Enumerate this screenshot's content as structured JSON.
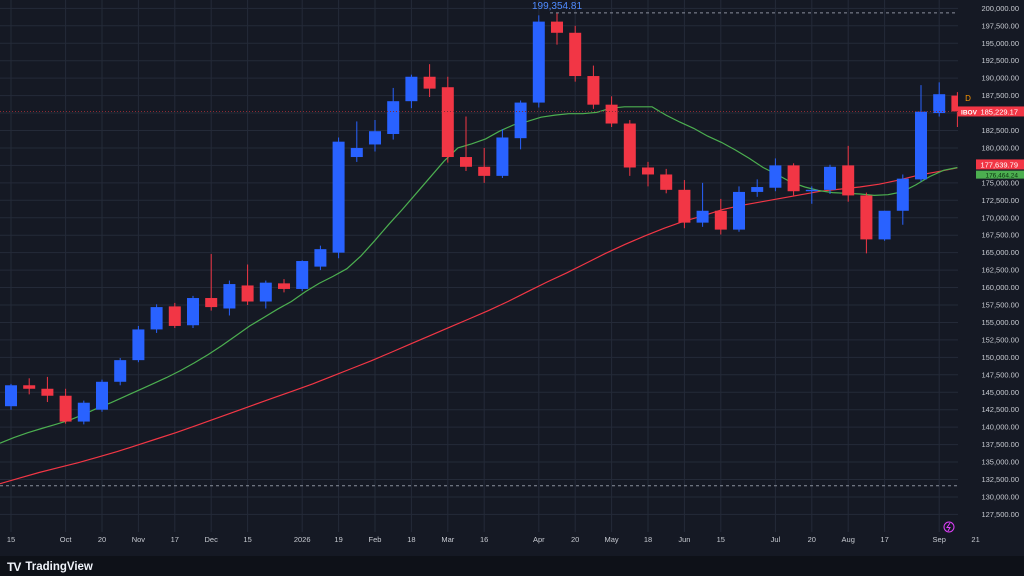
{
  "branding": {
    "logo_mark": "TV",
    "name": "TradingView"
  },
  "colors": {
    "up": "#2962ff",
    "down": "#f23645",
    "ma_fast": "#4caf50",
    "ma_slow": "#f23645",
    "grid": "#242a38",
    "background": "#151924",
    "price_badge": "#f23645",
    "high_label": "#4f8bff"
  },
  "chart_data": {
    "type": "candlestick",
    "interval": "weekly",
    "ylim": [
      126000,
      200500
    ],
    "y_ticks": [
      "127,500.00",
      "130,000.00",
      "132,500.00",
      "135,000.00",
      "137,500.00",
      "140,000.00",
      "142,500.00",
      "145,000.00",
      "147,500.00",
      "150,000.00",
      "152,500.00",
      "155,000.00",
      "157,500.00",
      "160,000.00",
      "162,500.00",
      "165,000.00",
      "167,500.00",
      "170,000.00",
      "172,500.00",
      "175,000.00",
      "177,500.00",
      "180,000.00",
      "182,500.00",
      "185,000.00",
      "187,500.00",
      "190,000.00",
      "192,500.00",
      "195,000.00",
      "197,500.00",
      "200,000.00"
    ],
    "x_ticks": [
      {
        "label": "15",
        "week": 0
      },
      {
        "label": "Oct",
        "week": 3
      },
      {
        "label": "20",
        "week": 5
      },
      {
        "label": "Nov",
        "week": 7
      },
      {
        "label": "17",
        "week": 9
      },
      {
        "label": "Dec",
        "week": 11
      },
      {
        "label": "15",
        "week": 13
      },
      {
        "label": "2026",
        "week": 16
      },
      {
        "label": "19",
        "week": 18
      },
      {
        "label": "Feb",
        "week": 20
      },
      {
        "label": "18",
        "week": 22
      },
      {
        "label": "Mar",
        "week": 24
      },
      {
        "label": "16",
        "week": 26
      },
      {
        "label": "Apr",
        "week": 29
      },
      {
        "label": "20",
        "week": 31
      },
      {
        "label": "May",
        "week": 33
      },
      {
        "label": "18",
        "week": 35
      },
      {
        "label": "Jun",
        "week": 37
      },
      {
        "label": "15",
        "week": 39
      },
      {
        "label": "Jul",
        "week": 42
      },
      {
        "label": "20",
        "week": 44
      },
      {
        "label": "Aug",
        "week": 46
      },
      {
        "label": "17",
        "week": 48
      },
      {
        "label": "Sep",
        "week": 51
      },
      {
        "label": "21",
        "week": 53
      }
    ],
    "candles": [
      {
        "o": 143000,
        "h": 146200,
        "l": 142500,
        "c": 146000
      },
      {
        "o": 146000,
        "h": 147000,
        "l": 144700,
        "c": 145500
      },
      {
        "o": 145500,
        "h": 147200,
        "l": 143600,
        "c": 144500
      },
      {
        "o": 144500,
        "h": 145500,
        "l": 140500,
        "c": 140800
      },
      {
        "o": 140800,
        "h": 143800,
        "l": 140400,
        "c": 143500
      },
      {
        "o": 142500,
        "h": 146800,
        "l": 142200,
        "c": 146500
      },
      {
        "o": 146500,
        "h": 149900,
        "l": 146000,
        "c": 149600
      },
      {
        "o": 149600,
        "h": 154500,
        "l": 149300,
        "c": 154000
      },
      {
        "o": 154000,
        "h": 157600,
        "l": 153500,
        "c": 157200
      },
      {
        "o": 157300,
        "h": 157800,
        "l": 154200,
        "c": 154500
      },
      {
        "o": 154600,
        "h": 158800,
        "l": 154200,
        "c": 158500
      },
      {
        "o": 158500,
        "h": 164800,
        "l": 156700,
        "c": 157200
      },
      {
        "o": 157000,
        "h": 161000,
        "l": 156000,
        "c": 160500
      },
      {
        "o": 160300,
        "h": 163300,
        "l": 157500,
        "c": 158000
      },
      {
        "o": 158000,
        "h": 161000,
        "l": 157000,
        "c": 160700
      },
      {
        "o": 160600,
        "h": 161200,
        "l": 159300,
        "c": 159800
      },
      {
        "o": 159800,
        "h": 163900,
        "l": 159500,
        "c": 163800
      },
      {
        "o": 163000,
        "h": 166000,
        "l": 162500,
        "c": 165500
      },
      {
        "o": 165000,
        "h": 181500,
        "l": 164200,
        "c": 180900
      },
      {
        "o": 178700,
        "h": 183800,
        "l": 178000,
        "c": 180000
      },
      {
        "o": 180500,
        "h": 184000,
        "l": 179500,
        "c": 182400
      },
      {
        "o": 182000,
        "h": 188600,
        "l": 181200,
        "c": 186700
      },
      {
        "o": 186700,
        "h": 190500,
        "l": 185700,
        "c": 190200
      },
      {
        "o": 190200,
        "h": 192000,
        "l": 187300,
        "c": 188500
      },
      {
        "o": 188700,
        "h": 190200,
        "l": 177900,
        "c": 178700
      },
      {
        "o": 178700,
        "h": 184500,
        "l": 176700,
        "c": 177300
      },
      {
        "o": 177300,
        "h": 180000,
        "l": 175000,
        "c": 176000
      },
      {
        "o": 176000,
        "h": 182700,
        "l": 175700,
        "c": 181500
      },
      {
        "o": 181400,
        "h": 186800,
        "l": 179800,
        "c": 186500
      },
      {
        "o": 186500,
        "h": 199000,
        "l": 185800,
        "c": 198100
      },
      {
        "o": 198100,
        "h": 199354.81,
        "l": 194800,
        "c": 196500
      },
      {
        "o": 196500,
        "h": 197500,
        "l": 189500,
        "c": 190300
      },
      {
        "o": 190300,
        "h": 191800,
        "l": 185600,
        "c": 186200
      },
      {
        "o": 186200,
        "h": 187400,
        "l": 183000,
        "c": 183500
      },
      {
        "o": 183500,
        "h": 184000,
        "l": 176000,
        "c": 177200
      },
      {
        "o": 177200,
        "h": 178000,
        "l": 174500,
        "c": 176200
      },
      {
        "o": 176200,
        "h": 177000,
        "l": 173500,
        "c": 174000
      },
      {
        "o": 174000,
        "h": 175400,
        "l": 168500,
        "c": 169300
      },
      {
        "o": 169300,
        "h": 175000,
        "l": 168700,
        "c": 171000
      },
      {
        "o": 171000,
        "h": 172700,
        "l": 167600,
        "c": 168300
      },
      {
        "o": 168300,
        "h": 174500,
        "l": 168000,
        "c": 173700
      },
      {
        "o": 173700,
        "h": 175500,
        "l": 173000,
        "c": 174400
      },
      {
        "o": 174300,
        "h": 178500,
        "l": 173800,
        "c": 177500
      },
      {
        "o": 177500,
        "h": 177800,
        "l": 173200,
        "c": 173800
      },
      {
        "o": 173800,
        "h": 174500,
        "l": 172000,
        "c": 174000
      },
      {
        "o": 174000,
        "h": 177600,
        "l": 173400,
        "c": 177300
      },
      {
        "o": 177500,
        "h": 180300,
        "l": 172300,
        "c": 173200
      },
      {
        "o": 173200,
        "h": 173600,
        "l": 164900,
        "c": 166900
      },
      {
        "o": 166900,
        "h": 171000,
        "l": 166700,
        "c": 171000
      },
      {
        "o": 171000,
        "h": 176200,
        "l": 169000,
        "c": 175600
      },
      {
        "o": 175500,
        "h": 189000,
        "l": 175200,
        "c": 185200
      },
      {
        "o": 185000,
        "h": 189400,
        "l": 184500,
        "c": 187700
      },
      {
        "o": 187500,
        "h": 188000,
        "l": 183000,
        "c": 185229.17
      }
    ],
    "ma_fast": [
      137700,
      138500,
      139200,
      139800,
      140400,
      141000,
      141800,
      142700,
      143500,
      144400,
      145300,
      146200,
      147100,
      148100,
      149200,
      150400,
      151700,
      153100,
      154500,
      155700,
      156900,
      158000,
      159400,
      160600,
      161600,
      162700,
      164500,
      166700,
      169000,
      171200,
      173500,
      175800,
      178100,
      180000,
      180600,
      181300,
      182400,
      183300,
      183800,
      184400,
      184700,
      184900,
      184900,
      185100,
      185700,
      185900,
      185900,
      185900,
      184700,
      183700,
      182800,
      181700,
      180800,
      179700,
      178500,
      177200,
      176200,
      175100,
      174400,
      173900,
      173600,
      173500,
      173400,
      173200,
      173300,
      173700,
      174700,
      175900,
      176800,
      177200
    ],
    "ma_slow": [
      131900,
      132700,
      133500,
      134200,
      134900,
      135700,
      136500,
      137400,
      138300,
      139200,
      140200,
      141200,
      142200,
      143200,
      144200,
      145200,
      146200,
      147300,
      148400,
      149500,
      150700,
      151900,
      153100,
      154300,
      155500,
      156700,
      158000,
      159400,
      160800,
      162100,
      163500,
      164900,
      166200,
      167400,
      168500,
      169500,
      170300,
      171200,
      171800,
      172300,
      172800,
      173300,
      173800,
      174100,
      174400,
      174800,
      175400,
      176100,
      176600,
      177150
    ],
    "high_label": "199,354.81",
    "last_price": "185,229.17",
    "ticker_badge": "IBOV",
    "ma_labels": [
      "177,639.79",
      "176,464.24"
    ],
    "marker": "D"
  }
}
